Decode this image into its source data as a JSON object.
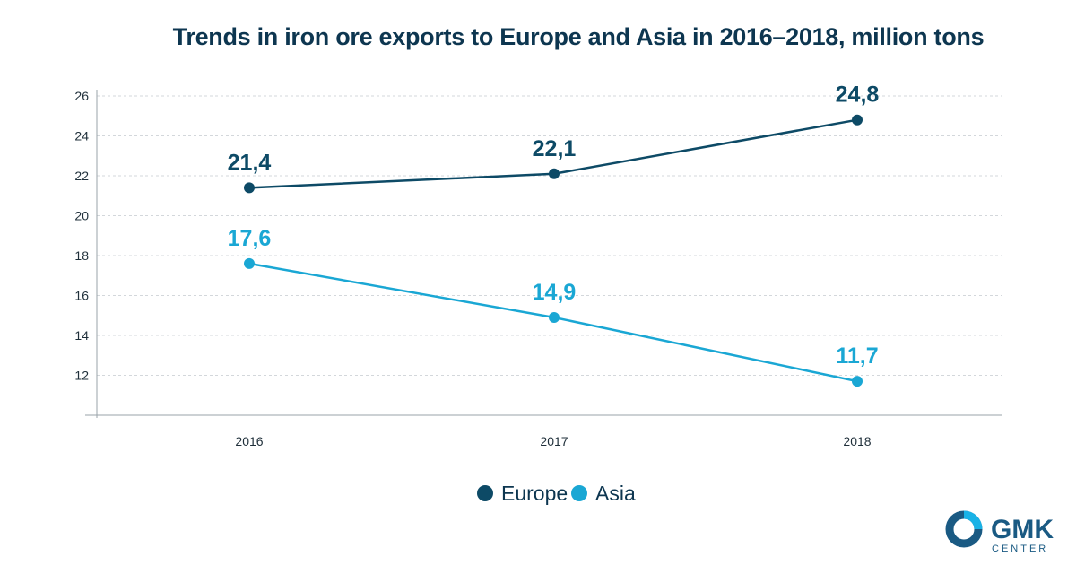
{
  "chart_data": {
    "type": "line",
    "title": "Trends in iron ore exports to Europe and Asia in 2016–2018, million tons",
    "categories": [
      "2016",
      "2017",
      "2018"
    ],
    "series": [
      {
        "name": "Europe",
        "values": [
          21.4,
          22.1,
          24.8
        ],
        "labels": [
          "21,4",
          "22,1",
          "24,8"
        ],
        "color": "#0d4a66"
      },
      {
        "name": "Asia",
        "values": [
          17.6,
          14.9,
          11.7
        ],
        "labels": [
          "17,6",
          "14,9",
          "11,7"
        ],
        "color": "#1aa7d4"
      }
    ],
    "y_ticks": [
      "12",
      "14",
      "16",
      "18",
      "20",
      "22",
      "24",
      "26"
    ],
    "ylim": [
      10,
      26
    ],
    "grid": true,
    "legend_position": "bottom-center"
  },
  "logo": {
    "text": "GMK",
    "subtext": "CENTER"
  },
  "colors": {
    "europe": "#0d4a66",
    "asia": "#1aa7d4",
    "grid": "#d3d7db",
    "axis": "#9aa3aa",
    "logo_dark": "#1a5a83",
    "logo_light": "#19b2e6"
  }
}
